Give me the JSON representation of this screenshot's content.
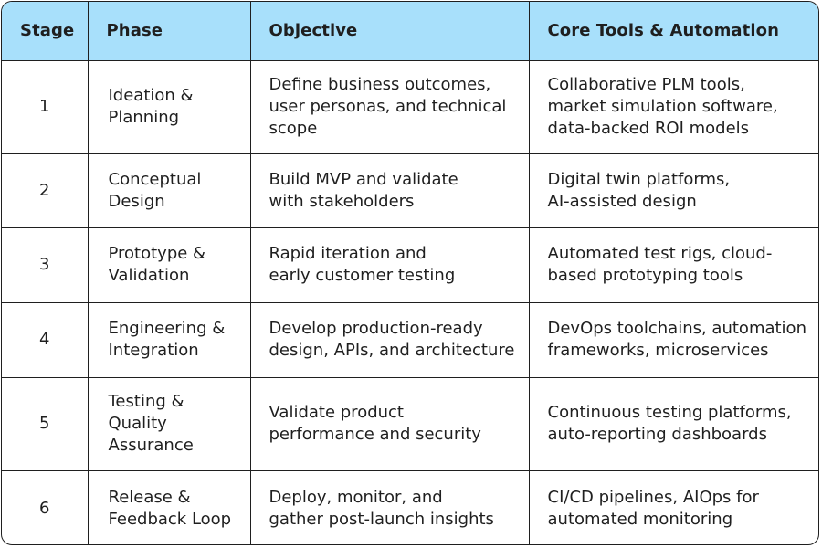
{
  "table": {
    "headers": {
      "stage": "Stage",
      "phase": "Phase",
      "objective": "Objective",
      "tools": "Core Tools & Automation"
    },
    "rows": [
      {
        "stage": "1",
        "phase": "Ideation &\nPlanning",
        "objective": "Define business outcomes,\nuser personas, and technical\nscope",
        "tools": "Collaborative PLM tools,\nmarket simulation software,\ndata-backed ROI models"
      },
      {
        "stage": "2",
        "phase": "Conceptual\nDesign",
        "objective": "Build MVP and validate\nwith stakeholders",
        "tools": "Digital twin platforms,\nAI-assisted design"
      },
      {
        "stage": "3",
        "phase": "Prototype &\nValidation",
        "objective": "Rapid iteration and\nearly customer testing",
        "tools": "Automated test rigs, cloud-\nbased prototyping tools"
      },
      {
        "stage": "4",
        "phase": "Engineering &\nIntegration",
        "objective": "Develop production-ready\ndesign, APIs, and architecture",
        "tools": "DevOps toolchains, automation\nframeworks, microservices"
      },
      {
        "stage": "5",
        "phase": "Testing &\nQuality\nAssurance",
        "objective": "Validate product\nperformance and security",
        "tools": "Continuous testing platforms,\nauto-reporting dashboards"
      },
      {
        "stage": "6",
        "phase": "Release &\nFeedback Loop",
        "objective": "Deploy, monitor, and\ngather post-launch insights",
        "tools": "CI/CD pipelines, AIOps for\nautomated monitoring"
      }
    ]
  },
  "colors": {
    "header_bg": "#a8e0fb",
    "border": "#1f1f1f",
    "text": "#1f1f1f",
    "body_bg": "#ffffff"
  }
}
